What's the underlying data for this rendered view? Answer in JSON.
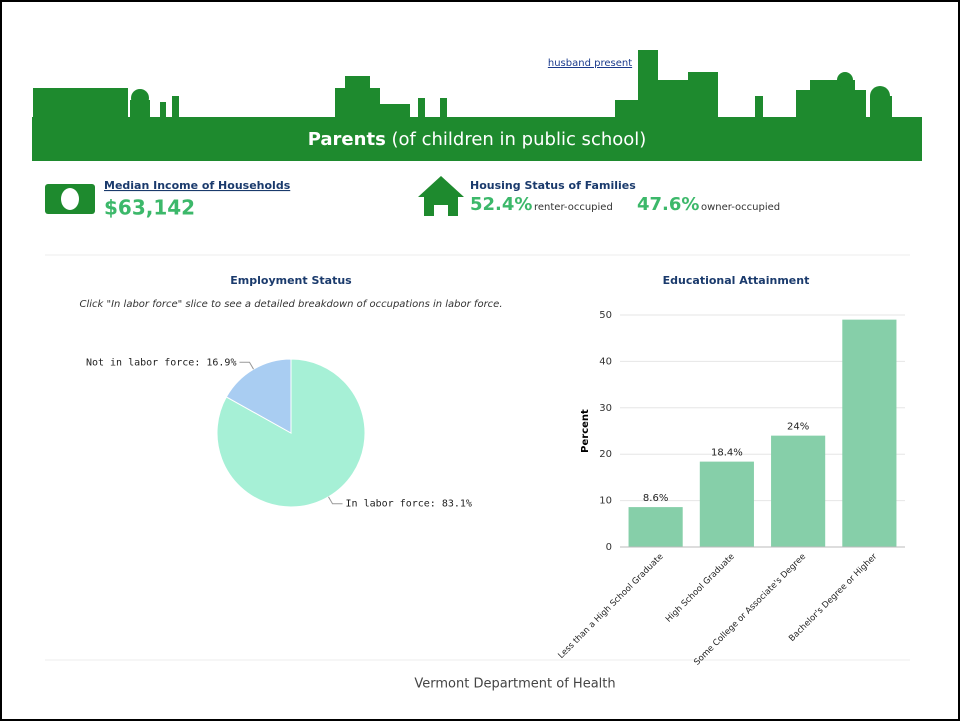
{
  "header": {
    "link": "husband present",
    "title": "Parents",
    "subtitle": "(of children in public school)"
  },
  "stats": {
    "income_label": "Median Income of Households",
    "income_value": "$63,142",
    "housing_label": "Housing Status of Families",
    "renter_value": "52.4%",
    "renter_label": "renter-occupied",
    "owner_value": "47.6%",
    "owner_label": "owner-occupied"
  },
  "chart_data": [
    {
      "type": "pie",
      "title": "Employment Status",
      "subtitle": "Click \"In labor force\" slice to see a detailed breakdown of occupations in labor force.",
      "labels": [
        "In labor force: 83.1%",
        "Not in labor force: 16.9%"
      ],
      "values": [
        83.1,
        16.9
      ],
      "colors": [
        "#a6f0d6",
        "#a9cdf2"
      ]
    },
    {
      "type": "bar",
      "title": "Educational Attainment",
      "ylabel": "Percent",
      "categories": [
        "Less than a High School Graduate",
        "High School Graduate",
        "Some College or Associate's Degree",
        "Bachelor's Degree or Higher"
      ],
      "values": [
        8.6,
        18.4,
        24,
        49
      ],
      "value_labels": [
        "8.6%",
        "18.4%",
        "24%",
        null
      ],
      "color": "#86cfa9",
      "ylim": [
        0,
        50
      ],
      "yticks": [
        0,
        10,
        20,
        30,
        40,
        50
      ],
      "grid": true
    }
  ],
  "footer": "Vermont Department of Health"
}
